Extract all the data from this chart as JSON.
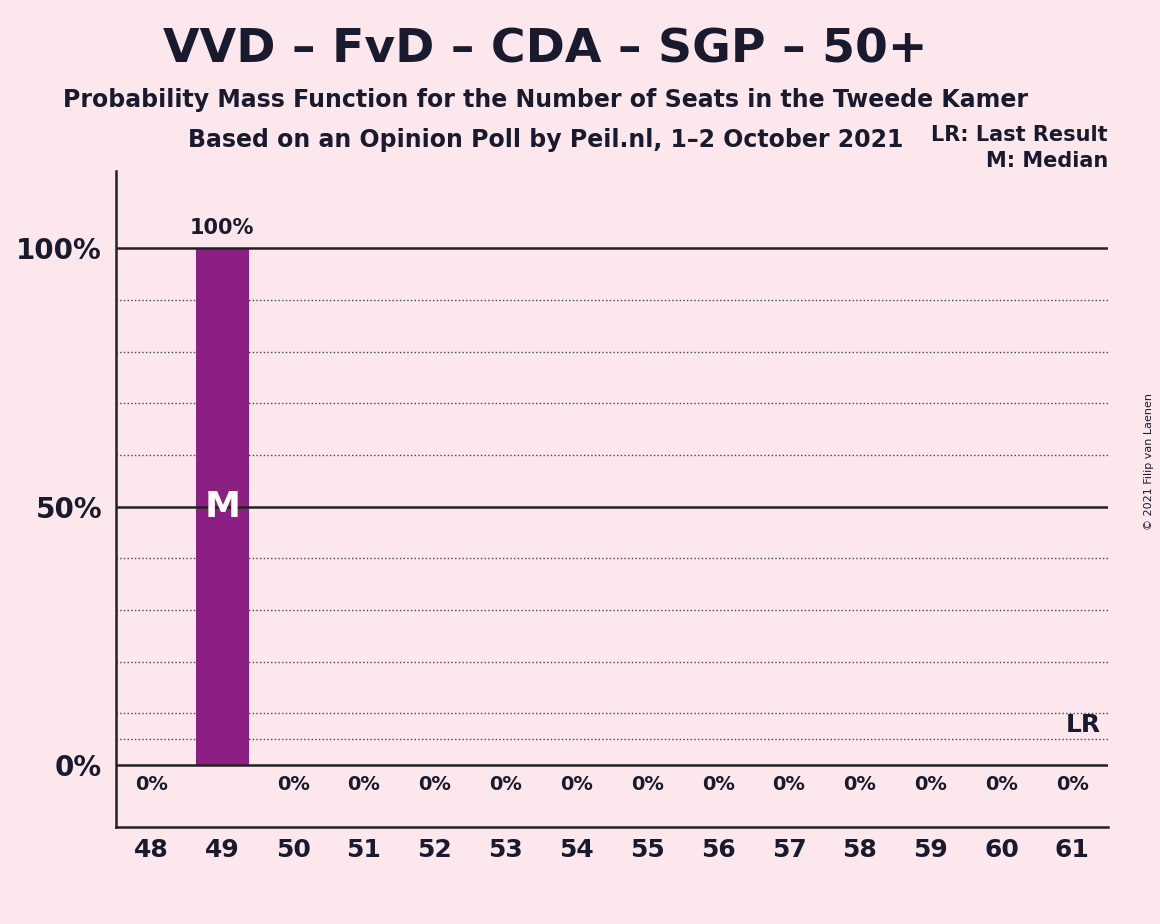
{
  "title": "VVD – FvD – CDA – SGP – 50+",
  "subtitle1": "Probability Mass Function for the Number of Seats in the Tweede Kamer",
  "subtitle2": "Based on an Opinion Poll by Peil.nl, 1–2 October 2021",
  "copyright": "© 2021 Filip van Laenen",
  "x_values": [
    48,
    49,
    50,
    51,
    52,
    53,
    54,
    55,
    56,
    57,
    58,
    59,
    60,
    61
  ],
  "y_values": [
    0,
    100,
    0,
    0,
    0,
    0,
    0,
    0,
    0,
    0,
    0,
    0,
    0,
    0
  ],
  "bar_color": "#8b2082",
  "background_color": "#fce8ec",
  "text_color": "#1a1a2e",
  "median_seat": 49,
  "lr_seat": 49,
  "legend_lr": "LR: Last Result",
  "legend_m": "M: Median",
  "lr_label": "LR",
  "m_label": "M",
  "bar_label_100": "100%",
  "ytick_labels": [
    "0%",
    "50%",
    "100%"
  ],
  "xlim": [
    47.5,
    61.5
  ],
  "ylim": [
    -12,
    115
  ],
  "solid_lines": [
    0,
    50,
    100
  ],
  "dotted_lines": [
    10,
    20,
    30,
    40,
    60,
    70,
    80,
    90
  ],
  "last_dotted_line": 5,
  "lr_line_y": 5
}
